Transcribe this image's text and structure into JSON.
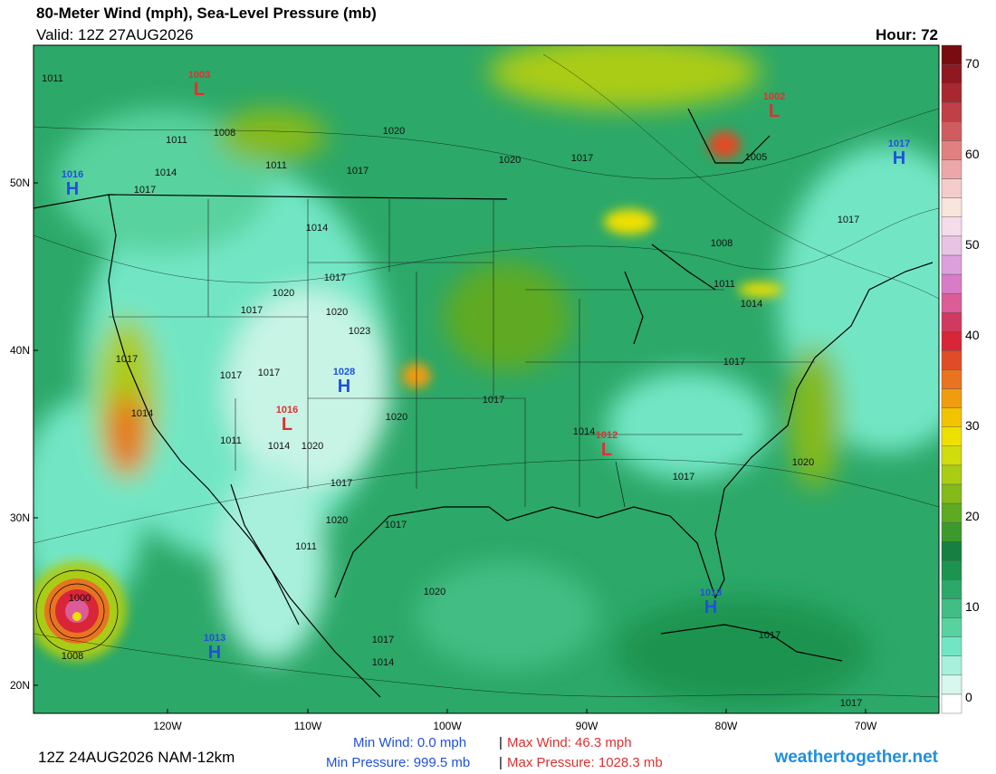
{
  "header": {
    "title": "80-Meter Wind (mph), Sea-Level Pressure (mb)",
    "valid": "Valid: 12Z 27AUG2026",
    "hour": "Hour: 72"
  },
  "map": {
    "lat_labels": [
      "50N",
      "40N",
      "30N",
      "20N"
    ],
    "lon_labels": [
      "120W",
      "110W",
      "100W",
      "90W",
      "80W",
      "70W"
    ],
    "centers": [
      {
        "symbol": "L",
        "pressure": "1003"
      },
      {
        "symbol": "L",
        "pressure": "1002"
      },
      {
        "symbol": "H",
        "pressure": "1017"
      },
      {
        "symbol": "H",
        "pressure": "1016"
      },
      {
        "symbol": "H",
        "pressure": "1028"
      },
      {
        "symbol": "L",
        "pressure": "1016"
      },
      {
        "symbol": "L",
        "pressure": "1012"
      },
      {
        "symbol": "H",
        "pressure": "1018"
      },
      {
        "symbol": "H",
        "pressure": "1013"
      }
    ],
    "isobar_labels": [
      "1011",
      "1011",
      "1008",
      "1011",
      "1014",
      "1017",
      "1017",
      "1020",
      "1020",
      "1017",
      "1005",
      "1014",
      "1017",
      "1020",
      "1017",
      "1020",
      "1023",
      "1017",
      "1017",
      "1017",
      "1014",
      "1020",
      "1017",
      "1011",
      "1014",
      "1020",
      "1014",
      "1017",
      "1017",
      "1020",
      "1020",
      "1017",
      "1011",
      "1020",
      "1017",
      "1014",
      "1017",
      "1000",
      "1008",
      "1008",
      "1011",
      "1014",
      "1017",
      "1017",
      "1017"
    ]
  },
  "colorbar": {
    "ticks": [
      0,
      10,
      20,
      30,
      40,
      50,
      60,
      70
    ],
    "colors": [
      "#ffffff",
      "#d8f7ee",
      "#a8f0dc",
      "#72e6c4",
      "#58d29e",
      "#42be84",
      "#2ca868",
      "#1c9450",
      "#168040",
      "#3c9a2c",
      "#5eaa22",
      "#84ba1a",
      "#aacc14",
      "#d0dc0c",
      "#eee000",
      "#f2c400",
      "#f09c10",
      "#e87420",
      "#e04c28",
      "#d82638",
      "#d03a60",
      "#dc5c98",
      "#d87cc8",
      "#dca0dc",
      "#e8c4e4",
      "#f4dcea",
      "#f8e6dc",
      "#f4cccc",
      "#eca8a8",
      "#e08080",
      "#d05c60",
      "#c04048",
      "#a82830",
      "#901820",
      "#780c10"
    ]
  },
  "footer": {
    "run": "12Z 24AUG2026 NAM-12km",
    "min_wind": "Min Wind:  0.0 mph",
    "max_wind": "Max Wind: 46.3 mph",
    "separator": "|",
    "min_pressure": "Min Pressure: 999.5 mb",
    "max_pressure": "Max Pressure: 1028.3 mb",
    "site": "weathertogether.net"
  }
}
